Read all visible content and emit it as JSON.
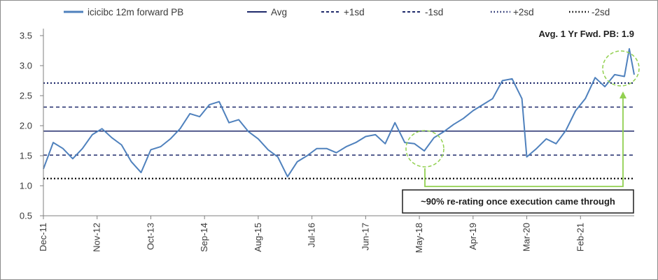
{
  "chart_data": {
    "type": "line",
    "annotation_title": "Avg. 1 Yr Fwd. PB: 1.9",
    "callout": "~90% re-rating once execution came through",
    "ylim": [
      0.5,
      3.5
    ],
    "yticks": [
      "0.5",
      "1.0",
      "1.5",
      "2.0",
      "2.5",
      "3.0",
      "3.5"
    ],
    "xticks": [
      "Dec-11",
      "Nov-12",
      "Oct-13",
      "Sep-14",
      "Aug-15",
      "Jul-16",
      "Jun-17",
      "May-18",
      "Apr-19",
      "Mar-20",
      "Feb-21"
    ],
    "legend": [
      "icicibc  12m forward PB",
      "Avg",
      "+1sd",
      "-1sd",
      "+2sd",
      "-2sd"
    ],
    "colors": {
      "series": "#4f81bd",
      "bands": "#1f2a6b",
      "sd2": "#000000",
      "highlight": "#92d050"
    },
    "bands": {
      "avg": 1.91,
      "plus1sd": 2.31,
      "minus1sd": 1.51,
      "plus2sd": 2.71,
      "minus2sd": 1.12
    },
    "series": [
      {
        "name": "icicibc  12m forward PB",
        "x": [
          "Dec-11",
          "Feb-12",
          "Apr-12",
          "Jun-12",
          "Aug-12",
          "Oct-12",
          "Dec-12",
          "Feb-13",
          "Apr-13",
          "Jun-13",
          "Aug-13",
          "Oct-13",
          "Dec-13",
          "Feb-14",
          "Apr-14",
          "Jun-14",
          "Aug-14",
          "Oct-14",
          "Dec-14",
          "Feb-15",
          "Apr-15",
          "Jun-15",
          "Aug-15",
          "Oct-15",
          "Dec-15",
          "Feb-16",
          "Apr-16",
          "Jun-16",
          "Aug-16",
          "Oct-16",
          "Dec-16",
          "Feb-17",
          "Apr-17",
          "Jun-17",
          "Aug-17",
          "Oct-17",
          "Dec-17",
          "Feb-18",
          "Apr-18",
          "Jun-18",
          "Aug-18",
          "Oct-18",
          "Dec-18",
          "Feb-19",
          "Apr-19",
          "Jun-19",
          "Aug-19",
          "Oct-19",
          "Dec-19",
          "Feb-20",
          "Mar-20",
          "May-20",
          "Jul-20",
          "Sep-20",
          "Nov-20",
          "Jan-21",
          "Mar-21",
          "May-21",
          "Jul-21",
          "Sep-21",
          "Nov-21",
          "Dec-21",
          "Jan-22"
        ],
        "values": [
          1.28,
          1.72,
          1.62,
          1.45,
          1.62,
          1.85,
          1.95,
          1.8,
          1.68,
          1.4,
          1.22,
          1.6,
          1.65,
          1.78,
          1.95,
          2.2,
          2.15,
          2.35,
          2.4,
          2.05,
          2.1,
          1.9,
          1.78,
          1.6,
          1.48,
          1.15,
          1.4,
          1.5,
          1.62,
          1.62,
          1.55,
          1.65,
          1.72,
          1.82,
          1.85,
          1.7,
          2.05,
          1.72,
          1.7,
          1.58,
          1.8,
          1.9,
          2.02,
          2.12,
          2.25,
          2.35,
          2.45,
          2.75,
          2.78,
          2.45,
          1.48,
          1.62,
          1.78,
          1.7,
          1.92,
          2.25,
          2.45,
          2.8,
          2.65,
          2.85,
          2.82,
          3.28,
          2.85
        ]
      }
    ]
  }
}
